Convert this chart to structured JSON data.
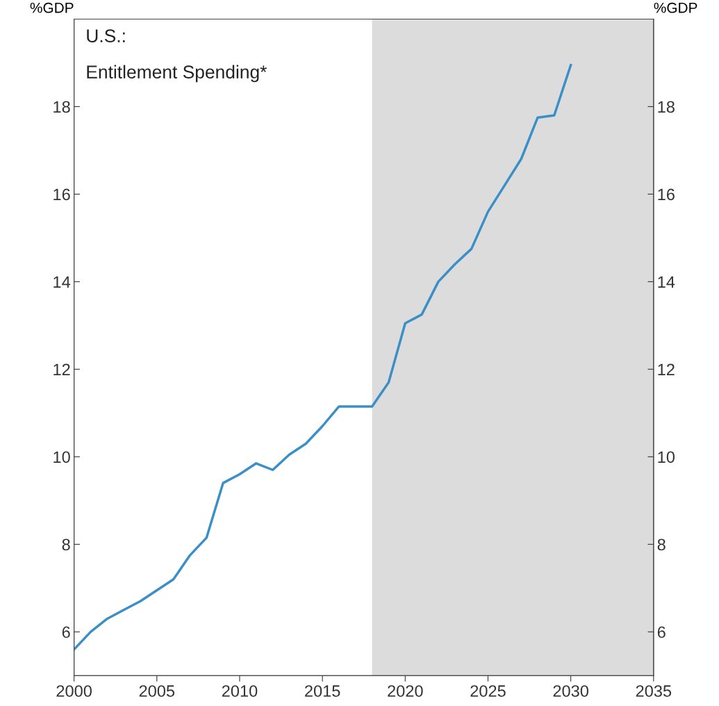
{
  "chart_data": {
    "type": "line",
    "title": "U.S.:",
    "subtitle": "Entitlement Spending*",
    "ylabel": "%GDP",
    "y2label": "%GDP",
    "x": [
      2000,
      2001,
      2002,
      2003,
      2004,
      2005,
      2006,
      2007,
      2008,
      2009,
      2010,
      2011,
      2012,
      2013,
      2014,
      2015,
      2016,
      2017,
      2018,
      2019,
      2020,
      2021,
      2022,
      2023,
      2024,
      2025,
      2026,
      2027,
      2028,
      2029,
      2030
    ],
    "series": [
      {
        "color": "#3b8fc7",
        "values": [
          5.6,
          6.0,
          6.3,
          6.5,
          6.7,
          6.95,
          7.2,
          7.75,
          8.15,
          9.4,
          9.6,
          9.85,
          9.7,
          10.05,
          10.3,
          10.7,
          11.15,
          11.15,
          11.15,
          11.7,
          13.05,
          13.25,
          14.0,
          14.4,
          14.75,
          15.6,
          16.2,
          16.8,
          17.75,
          17.8,
          18.95
        ]
      }
    ],
    "xlim": [
      2000,
      2035
    ],
    "xticks": [
      2000,
      2005,
      2010,
      2015,
      2020,
      2025,
      2030,
      2035
    ],
    "ylim": [
      5,
      20
    ],
    "yticks": [
      6,
      8,
      10,
      12,
      14,
      16,
      18
    ],
    "y2lim": [
      5,
      20
    ],
    "y2ticks": [
      6,
      8,
      10,
      12,
      14,
      16,
      18
    ],
    "bands": [
      {
        "axis": "x",
        "from": 2018,
        "to": 2035,
        "color": "#dcdcdc"
      }
    ],
    "grid": false,
    "legend": false,
    "line_style": "solid",
    "marker": "none"
  }
}
